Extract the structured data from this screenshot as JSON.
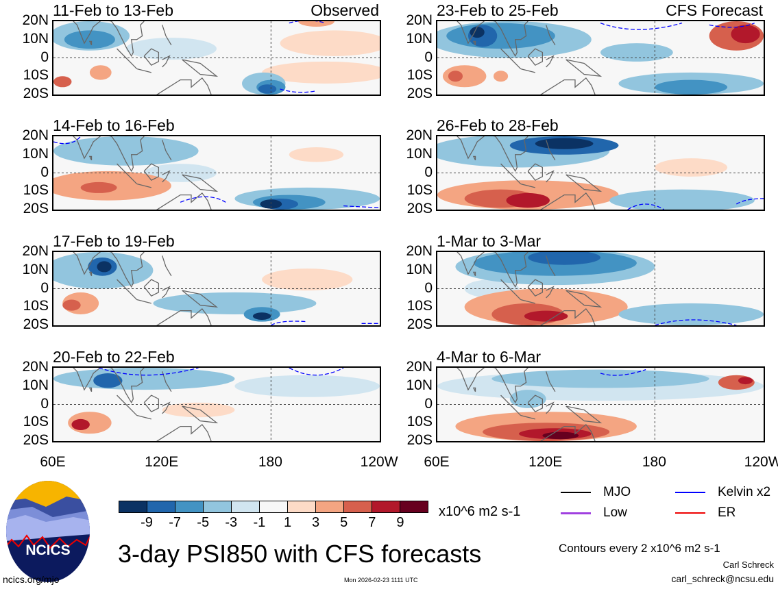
{
  "panels": [
    {
      "title": "11-Feb to 13-Feb",
      "tag": "Observed"
    },
    {
      "title": "23-Feb to 25-Feb",
      "tag": "CFS Forecast"
    },
    {
      "title": "14-Feb to 16-Feb",
      "tag": ""
    },
    {
      "title": "26-Feb to 28-Feb",
      "tag": ""
    },
    {
      "title": "17-Feb to 19-Feb",
      "tag": ""
    },
    {
      "title": "1-Mar to 3-Mar",
      "tag": ""
    },
    {
      "title": "20-Feb to 22-Feb",
      "tag": ""
    },
    {
      "title": "4-Mar to 6-Mar",
      "tag": ""
    }
  ],
  "lat_labels": [
    "20N",
    "10N",
    "0",
    "10S",
    "20S"
  ],
  "lon_labels": [
    "60E",
    "120E",
    "180",
    "120W"
  ],
  "colorbar": {
    "colors": [
      "#0b3263",
      "#2166ac",
      "#4393c3",
      "#92c5de",
      "#d1e5f0",
      "#f7f7f7",
      "#fddbc7",
      "#f4a582",
      "#d6604d",
      "#b2182b",
      "#67001f"
    ],
    "labels": [
      "-9",
      "-7",
      "-5",
      "-3",
      "-1",
      "1",
      "3",
      "5",
      "7",
      "9"
    ],
    "units": "x10^6 m2 s-1"
  },
  "contour_legend": [
    {
      "label": "MJO",
      "color": "#000000"
    },
    {
      "label": "Kelvin x2",
      "color": "#0000ff"
    },
    {
      "label": "Low",
      "color": "#a040e0"
    },
    {
      "label": "ER",
      "color": "#e00000"
    }
  ],
  "contour_note": "Contours every 2 x10^6 m2 s-1",
  "title": "3-day PSI850 with CFS forecasts",
  "logo_text": "NCICS",
  "site": "ncics.org/mjo",
  "timestamp": "Mon 2026-02-23 1111 UTC",
  "author": "Carl Schreck",
  "email": "carl_schreck@ncsu.edu"
}
